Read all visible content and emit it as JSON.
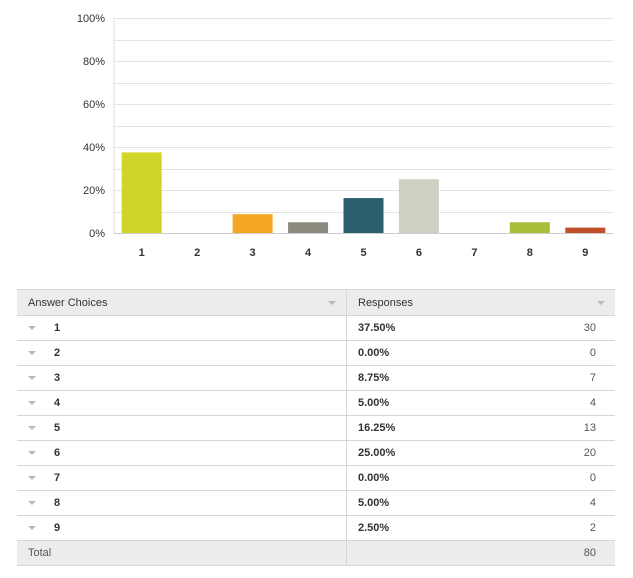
{
  "chart_data": {
    "type": "bar",
    "categories": [
      "1",
      "2",
      "3",
      "4",
      "5",
      "6",
      "7",
      "8",
      "9"
    ],
    "values": [
      37.5,
      0,
      8.75,
      5,
      16.25,
      25,
      0,
      5,
      2.5
    ],
    "colors": [
      "#d1d52a",
      "#cfcfcf",
      "#f4a724",
      "#8c8a7e",
      "#2c5f6e",
      "#d0cfc3",
      "#cfcfcf",
      "#a8bd3a",
      "#c0502a"
    ],
    "yticks": [
      "0%",
      "20%",
      "40%",
      "60%",
      "80%",
      "100%"
    ],
    "ylim": [
      0,
      100
    ],
    "grid": true,
    "gridColor": "#e3e3e3"
  },
  "table": {
    "headers": {
      "choices": "Answer Choices",
      "responses": "Responses"
    },
    "rows": [
      {
        "choice": "1",
        "percent": "37.50%",
        "count": "30"
      },
      {
        "choice": "2",
        "percent": "0.00%",
        "count": "0"
      },
      {
        "choice": "3",
        "percent": "8.75%",
        "count": "7"
      },
      {
        "choice": "4",
        "percent": "5.00%",
        "count": "4"
      },
      {
        "choice": "5",
        "percent": "16.25%",
        "count": "13"
      },
      {
        "choice": "6",
        "percent": "25.00%",
        "count": "20"
      },
      {
        "choice": "7",
        "percent": "0.00%",
        "count": "0"
      },
      {
        "choice": "8",
        "percent": "5.00%",
        "count": "4"
      },
      {
        "choice": "9",
        "percent": "2.50%",
        "count": "2"
      }
    ],
    "total": {
      "label": "Total",
      "count": "80"
    }
  }
}
